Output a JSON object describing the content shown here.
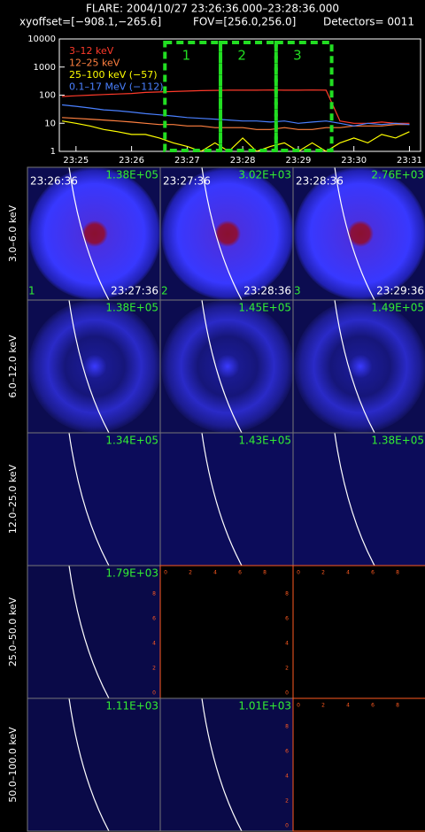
{
  "header": {
    "title": "FLARE: 2004/10/27 23:26:36.000–23:28:36.000",
    "xyoffset": "xyoffset=[−908.1,−265.6]",
    "fov": "FOV=[256.0,256.0]",
    "detectors": "Detectors= 0011"
  },
  "chart_data": {
    "type": "line",
    "ylog": true,
    "x": [
      24.75,
      25.0,
      25.25,
      25.5,
      25.75,
      26.0,
      26.25,
      26.5,
      26.75,
      27.0,
      27.25,
      27.5,
      27.75,
      28.0,
      28.25,
      28.5,
      28.75,
      29.0,
      29.25,
      29.5,
      29.75,
      30.0,
      30.25,
      30.5,
      30.75,
      31.0
    ],
    "xlim": [
      24.7,
      31.2
    ],
    "xticks": [
      {
        "value": 25,
        "label": "23:25"
      },
      {
        "value": 26,
        "label": "23:26"
      },
      {
        "value": 27,
        "label": "23:27"
      },
      {
        "value": 28,
        "label": "23:28"
      },
      {
        "value": 29,
        "label": "23:29"
      },
      {
        "value": 30,
        "label": "23:30"
      },
      {
        "value": 31,
        "label": "23:31"
      }
    ],
    "ylim": [
      1,
      10000
    ],
    "yticks": [
      1,
      10,
      100,
      1000,
      10000
    ],
    "series": [
      {
        "name": "3–12 keV",
        "color": "#ff3a2a",
        "values": [
          90,
          95,
          100,
          105,
          110,
          115,
          125,
          130,
          135,
          140,
          145,
          148,
          150,
          150,
          150,
          152,
          150,
          150,
          152,
          150,
          12,
          10,
          10,
          11,
          10,
          10
        ]
      },
      {
        "name": "12–25 keV",
        "color": "#ff8040",
        "values": [
          16,
          15,
          14,
          13,
          12,
          11,
          10,
          9,
          9,
          8,
          8,
          7,
          7,
          7,
          6,
          6,
          7,
          6,
          6,
          7,
          7,
          8,
          8,
          8,
          9,
          9
        ]
      },
      {
        "name": "25–100 keV (−57)",
        "color": "#ffff00",
        "values": [
          12,
          10,
          8,
          6,
          5,
          4,
          4,
          3,
          2,
          1.5,
          1,
          2,
          1,
          3,
          1,
          1.5,
          2,
          1,
          2,
          1,
          2,
          3,
          2,
          4,
          3,
          5
        ]
      },
      {
        "name": "0.1–17 MeV (−112)",
        "color": "#4a80ff",
        "values": [
          45,
          40,
          35,
          30,
          28,
          25,
          22,
          20,
          18,
          16,
          15,
          14,
          13,
          12,
          12,
          11,
          12,
          10,
          11,
          12,
          10,
          8,
          10,
          9,
          10,
          9
        ]
      }
    ],
    "intervals": [
      {
        "label": "1",
        "start": 26.6,
        "end": 27.6
      },
      {
        "label": "2",
        "start": 27.6,
        "end": 28.6
      },
      {
        "label": "3",
        "start": 28.6,
        "end": 29.6
      }
    ]
  },
  "images": {
    "empty_axis_ticks": [
      0,
      2,
      4,
      6,
      8
    ],
    "rows": [
      {
        "energy": "3.0–6.0 keV",
        "panels": [
          {
            "max": "1.38E+05",
            "start": "23:26:36",
            "end": "23:27:36",
            "number": "1"
          },
          {
            "max": "3.02E+03",
            "start": "23:27:36",
            "end": "23:28:36",
            "number": "2"
          },
          {
            "max": "2.76E+03",
            "start": "23:28:36",
            "end": "23:29:36",
            "number": "3"
          }
        ]
      },
      {
        "energy": "6.0–12.0 keV",
        "panels": [
          {
            "max": "1.38E+05"
          },
          {
            "max": "1.45E+05"
          },
          {
            "max": "1.49E+05"
          }
        ]
      },
      {
        "energy": "12.0–25.0 keV",
        "panels": [
          {
            "max": "1.34E+05"
          },
          {
            "max": "1.43E+05"
          },
          {
            "max": "1.38E+05"
          }
        ]
      },
      {
        "energy": "25.0–50.0 keV",
        "panels": [
          {
            "max": "1.79E+03"
          },
          {
            "max": null
          },
          {
            "max": null
          }
        ]
      },
      {
        "energy": "50.0–100.0 keV",
        "panels": [
          {
            "max": "1.11E+03"
          },
          {
            "max": "1.01E+03"
          },
          {
            "max": null
          }
        ]
      }
    ]
  }
}
